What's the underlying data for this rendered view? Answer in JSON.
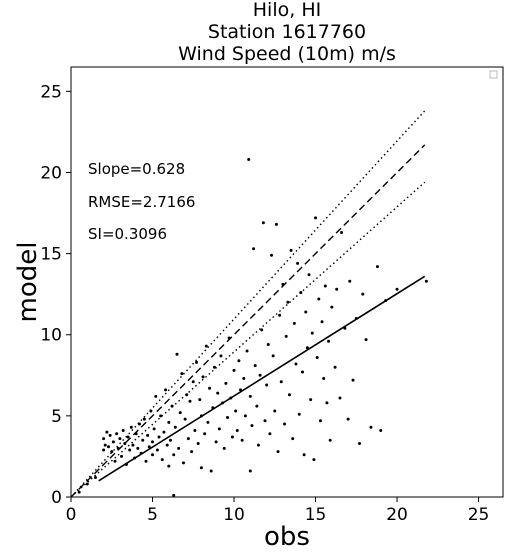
{
  "chart_data": {
    "type": "scatter",
    "title_lines": [
      "Hilo, HI",
      "Station 1617760",
      "Wind Speed (10m) m/s"
    ],
    "xlabel": "obs",
    "ylabel": "model",
    "xlim": [
      0,
      26.5
    ],
    "ylim": [
      0,
      26.5
    ],
    "xticks": [
      0,
      5,
      10,
      15,
      20,
      25
    ],
    "yticks": [
      0,
      5,
      10,
      15,
      20,
      25
    ],
    "grid": false,
    "legend": "top-right",
    "stats": [
      "Slope=0.628",
      "RMSE=2.7166",
      "SI=0.3096"
    ],
    "lines": [
      {
        "style": "dashed",
        "x": [
          0,
          21.7
        ],
        "y": [
          0,
          21.7
        ]
      },
      {
        "style": "dotted",
        "x": [
          0,
          21.7
        ],
        "y": [
          0,
          23.8
        ]
      },
      {
        "style": "dotted",
        "x": [
          0,
          21.7
        ],
        "y": [
          0,
          19.4
        ]
      },
      {
        "style": "solid",
        "x": [
          1.7,
          21.7
        ],
        "y": [
          1.0,
          13.6
        ]
      }
    ],
    "points": [
      [
        0.5,
        0.3
      ],
      [
        1.0,
        0.8
      ],
      [
        1.5,
        1.2
      ],
      [
        2.0,
        2.9
      ],
      [
        2.0,
        3.6
      ],
      [
        2.1,
        3.2
      ],
      [
        2.2,
        4.0
      ],
      [
        2.3,
        3.1
      ],
      [
        2.4,
        3.8
      ],
      [
        2.5,
        2.8
      ],
      [
        2.6,
        3.4
      ],
      [
        2.7,
        2.2
      ],
      [
        2.8,
        3.9
      ],
      [
        2.9,
        3.0
      ],
      [
        3.0,
        3.6
      ],
      [
        3.1,
        2.5
      ],
      [
        3.2,
        4.1
      ],
      [
        3.3,
        3.3
      ],
      [
        3.4,
        2.0
      ],
      [
        3.5,
        3.7
      ],
      [
        3.6,
        2.9
      ],
      [
        3.7,
        4.3
      ],
      [
        3.8,
        3.2
      ],
      [
        3.9,
        2.4
      ],
      [
        4.0,
        3.9
      ],
      [
        4.1,
        3.0
      ],
      [
        4.2,
        4.5
      ],
      [
        4.3,
        2.7
      ],
      [
        4.4,
        3.5
      ],
      [
        4.5,
        4.8
      ],
      [
        4.6,
        2.2
      ],
      [
        4.7,
        3.8
      ],
      [
        4.8,
        3.1
      ],
      [
        4.9,
        5.3
      ],
      [
        5.0,
        2.6
      ],
      [
        5.0,
        3.4
      ],
      [
        5.1,
        4.2
      ],
      [
        5.2,
        6.2
      ],
      [
        5.3,
        2.9
      ],
      [
        5.4,
        3.7
      ],
      [
        5.5,
        5.0
      ],
      [
        5.6,
        2.3
      ],
      [
        5.7,
        4.0
      ],
      [
        5.8,
        6.6
      ],
      [
        5.9,
        3.2
      ],
      [
        6.0,
        1.9
      ],
      [
        6.0,
        4.6
      ],
      [
        6.1,
        3.5
      ],
      [
        6.2,
        5.6
      ],
      [
        6.3,
        2.6
      ],
      [
        6.3,
        0.1
      ],
      [
        6.4,
        4.3
      ],
      [
        6.5,
        8.8
      ],
      [
        6.6,
        3.0
      ],
      [
        6.7,
        5.2
      ],
      [
        6.8,
        7.6
      ],
      [
        6.9,
        2.1
      ],
      [
        7.0,
        4.8
      ],
      [
        7.1,
        6.3
      ],
      [
        7.2,
        3.6
      ],
      [
        7.3,
        5.9
      ],
      [
        7.4,
        2.8
      ],
      [
        7.5,
        7.1
      ],
      [
        7.6,
        4.1
      ],
      [
        7.7,
        8.3
      ],
      [
        7.8,
        3.3
      ],
      [
        7.9,
        6.0
      ],
      [
        8.0,
        1.8
      ],
      [
        8.0,
        5.0
      ],
      [
        8.1,
        7.4
      ],
      [
        8.2,
        3.9
      ],
      [
        8.3,
        9.3
      ],
      [
        8.4,
        4.6
      ],
      [
        8.5,
        6.7
      ],
      [
        8.6,
        1.6
      ],
      [
        8.7,
        5.5
      ],
      [
        8.8,
        8.0
      ],
      [
        8.9,
        3.4
      ],
      [
        9.0,
        6.4
      ],
      [
        9.1,
        4.2
      ],
      [
        9.2,
        8.7
      ],
      [
        9.3,
        5.8
      ],
      [
        9.4,
        3.0
      ],
      [
        9.5,
        7.0
      ],
      [
        9.6,
        4.9
      ],
      [
        9.7,
        9.8
      ],
      [
        9.8,
        6.1
      ],
      [
        9.9,
        3.7
      ],
      [
        10.0,
        7.8
      ],
      [
        10.1,
        5.3
      ],
      [
        10.2,
        4.1
      ],
      [
        10.3,
        8.4
      ],
      [
        10.4,
        6.6
      ],
      [
        10.5,
        3.5
      ],
      [
        10.6,
        7.3
      ],
      [
        10.7,
        5.0
      ],
      [
        10.8,
        9.0
      ],
      [
        10.9,
        20.8
      ],
      [
        11.0,
        1.6
      ],
      [
        11.0,
        6.2
      ],
      [
        11.1,
        4.4
      ],
      [
        11.2,
        15.3
      ],
      [
        11.3,
        8.1
      ],
      [
        11.4,
        5.6
      ],
      [
        11.5,
        3.2
      ],
      [
        11.6,
        7.5
      ],
      [
        11.7,
        10.3
      ],
      [
        11.8,
        16.9
      ],
      [
        11.9,
        4.7
      ],
      [
        12.0,
        6.9
      ],
      [
        12.1,
        9.4
      ],
      [
        12.2,
        3.9
      ],
      [
        12.3,
        14.9
      ],
      [
        12.4,
        8.7
      ],
      [
        12.5,
        5.3
      ],
      [
        12.6,
        16.8
      ],
      [
        12.7,
        2.8
      ],
      [
        12.8,
        11.2
      ],
      [
        12.9,
        7.1
      ],
      [
        13.0,
        13.1
      ],
      [
        13.1,
        4.5
      ],
      [
        13.2,
        9.9
      ],
      [
        13.3,
        12.0
      ],
      [
        13.4,
        6.3
      ],
      [
        13.5,
        15.2
      ],
      [
        13.6,
        3.6
      ],
      [
        13.7,
        10.7
      ],
      [
        13.8,
        8.2
      ],
      [
        13.9,
        14.4
      ],
      [
        14.0,
        5.1
      ],
      [
        14.1,
        12.6
      ],
      [
        14.2,
        7.7
      ],
      [
        14.3,
        2.6
      ],
      [
        14.4,
        11.4
      ],
      [
        14.5,
        9.2
      ],
      [
        14.6,
        13.7
      ],
      [
        14.7,
        6.0
      ],
      [
        14.8,
        10.1
      ],
      [
        14.9,
        2.3
      ],
      [
        15.0,
        17.2
      ],
      [
        15.1,
        8.6
      ],
      [
        15.2,
        12.2
      ],
      [
        15.3,
        4.7
      ],
      [
        15.4,
        10.8
      ],
      [
        15.5,
        7.3
      ],
      [
        15.6,
        13.0
      ],
      [
        15.7,
        5.8
      ],
      [
        15.8,
        9.6
      ],
      [
        15.9,
        3.5
      ],
      [
        16.0,
        11.7
      ],
      [
        16.2,
        8.0
      ],
      [
        16.3,
        12.8
      ],
      [
        16.5,
        6.1
      ],
      [
        16.6,
        16.3
      ],
      [
        16.8,
        10.4
      ],
      [
        17.0,
        4.8
      ],
      [
        17.1,
        13.3
      ],
      [
        17.3,
        7.2
      ],
      [
        17.5,
        11.0
      ],
      [
        17.7,
        3.3
      ],
      [
        17.9,
        12.5
      ],
      [
        18.1,
        9.7
      ],
      [
        18.4,
        4.3
      ],
      [
        18.8,
        14.2
      ],
      [
        19.0,
        4.1
      ],
      [
        19.3,
        12.1
      ],
      [
        20.0,
        12.8
      ],
      [
        21.8,
        13.3
      ]
    ]
  }
}
